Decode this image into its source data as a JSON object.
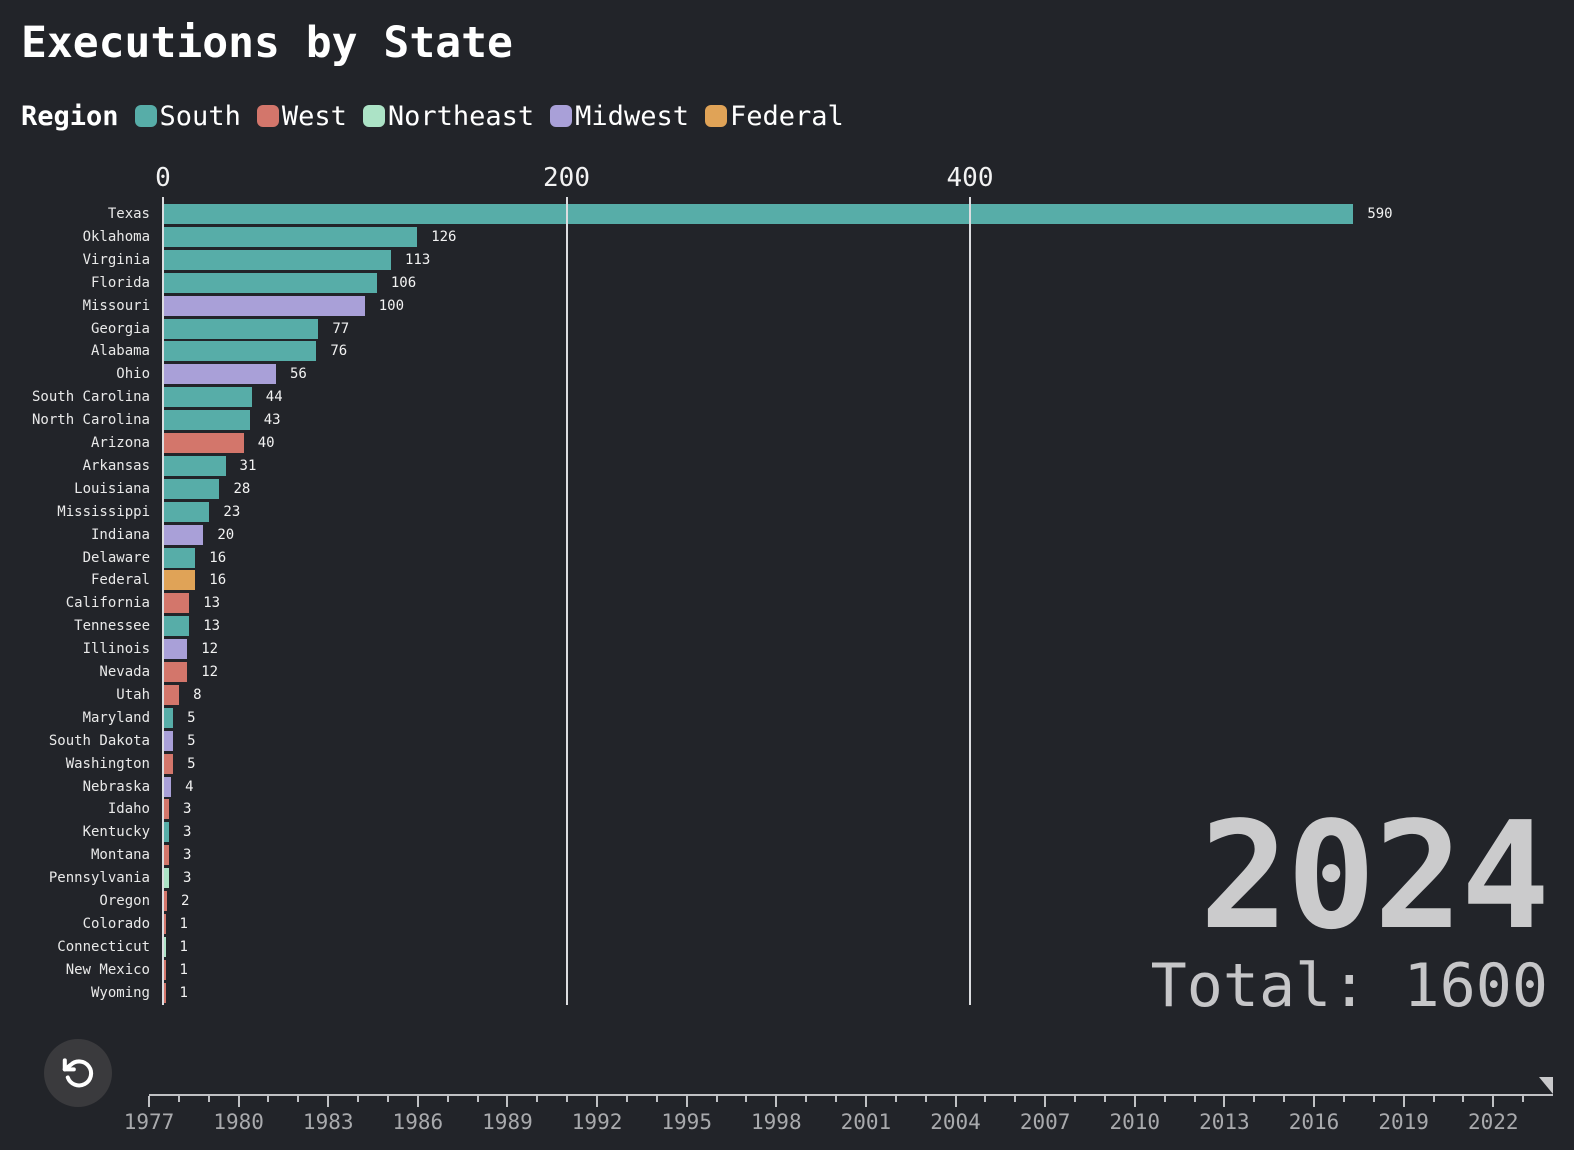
{
  "chart_data": {
    "type": "bar",
    "orientation": "horizontal",
    "title": "Executions by State",
    "legend_title": "Region",
    "legend_position": "top",
    "regions": [
      {
        "name": "South",
        "color": "#57ADA8"
      },
      {
        "name": "West",
        "color": "#D3766B"
      },
      {
        "name": "Northeast",
        "color": "#ACE3C6"
      },
      {
        "name": "Midwest",
        "color": "#A9A0D8"
      },
      {
        "name": "Federal",
        "color": "#E0A357"
      }
    ],
    "x_axis": {
      "ticks": [
        0,
        200,
        400
      ],
      "max": 695,
      "gridlines": true,
      "position": "top"
    },
    "bars": [
      {
        "label": "Texas",
        "value": 590,
        "region": "South"
      },
      {
        "label": "Oklahoma",
        "value": 126,
        "region": "South"
      },
      {
        "label": "Virginia",
        "value": 113,
        "region": "South"
      },
      {
        "label": "Florida",
        "value": 106,
        "region": "South"
      },
      {
        "label": "Missouri",
        "value": 100,
        "region": "Midwest"
      },
      {
        "label": "Georgia",
        "value": 77,
        "region": "South"
      },
      {
        "label": "Alabama",
        "value": 76,
        "region": "South"
      },
      {
        "label": "Ohio",
        "value": 56,
        "region": "Midwest"
      },
      {
        "label": "South Carolina",
        "value": 44,
        "region": "South"
      },
      {
        "label": "North Carolina",
        "value": 43,
        "region": "South"
      },
      {
        "label": "Arizona",
        "value": 40,
        "region": "West"
      },
      {
        "label": "Arkansas",
        "value": 31,
        "region": "South"
      },
      {
        "label": "Louisiana",
        "value": 28,
        "region": "South"
      },
      {
        "label": "Mississippi",
        "value": 23,
        "region": "South"
      },
      {
        "label": "Indiana",
        "value": 20,
        "region": "Midwest"
      },
      {
        "label": "Delaware",
        "value": 16,
        "region": "South"
      },
      {
        "label": "Federal",
        "value": 16,
        "region": "Federal"
      },
      {
        "label": "California",
        "value": 13,
        "region": "West"
      },
      {
        "label": "Tennessee",
        "value": 13,
        "region": "South"
      },
      {
        "label": "Illinois",
        "value": 12,
        "region": "Midwest"
      },
      {
        "label": "Nevada",
        "value": 12,
        "region": "West"
      },
      {
        "label": "Utah",
        "value": 8,
        "region": "West"
      },
      {
        "label": "Maryland",
        "value": 5,
        "region": "South"
      },
      {
        "label": "South Dakota",
        "value": 5,
        "region": "Midwest"
      },
      {
        "label": "Washington",
        "value": 5,
        "region": "West"
      },
      {
        "label": "Nebraska",
        "value": 4,
        "region": "Midwest"
      },
      {
        "label": "Idaho",
        "value": 3,
        "region": "West"
      },
      {
        "label": "Kentucky",
        "value": 3,
        "region": "South"
      },
      {
        "label": "Montana",
        "value": 3,
        "region": "West"
      },
      {
        "label": "Pennsylvania",
        "value": 3,
        "region": "Northeast"
      },
      {
        "label": "Oregon",
        "value": 2,
        "region": "West"
      },
      {
        "label": "Colorado",
        "value": 1,
        "region": "West"
      },
      {
        "label": "Connecticut",
        "value": 1,
        "region": "Northeast"
      },
      {
        "label": "New Mexico",
        "value": 1,
        "region": "West"
      },
      {
        "label": "Wyoming",
        "value": 1,
        "region": "West"
      }
    ],
    "year": "2024",
    "total_text": "Total: 1600",
    "timeline": {
      "start_year": 1977,
      "end_year": 2024,
      "labeled_ticks": [
        1977,
        1980,
        1983,
        1986,
        1989,
        1992,
        1995,
        1998,
        2001,
        2004,
        2007,
        2010,
        2013,
        2016,
        2019,
        2022
      ],
      "minor_tick_every_years": 1,
      "playhead_position_year": 2024
    }
  },
  "colors": {
    "background": "#222429",
    "year_text": "#CBCBCC",
    "axis": "#C0C1C4",
    "gridline": "#DCDDE0"
  },
  "controls": {
    "replay": {
      "icon": "rotate-ccw",
      "label": "replay"
    }
  }
}
